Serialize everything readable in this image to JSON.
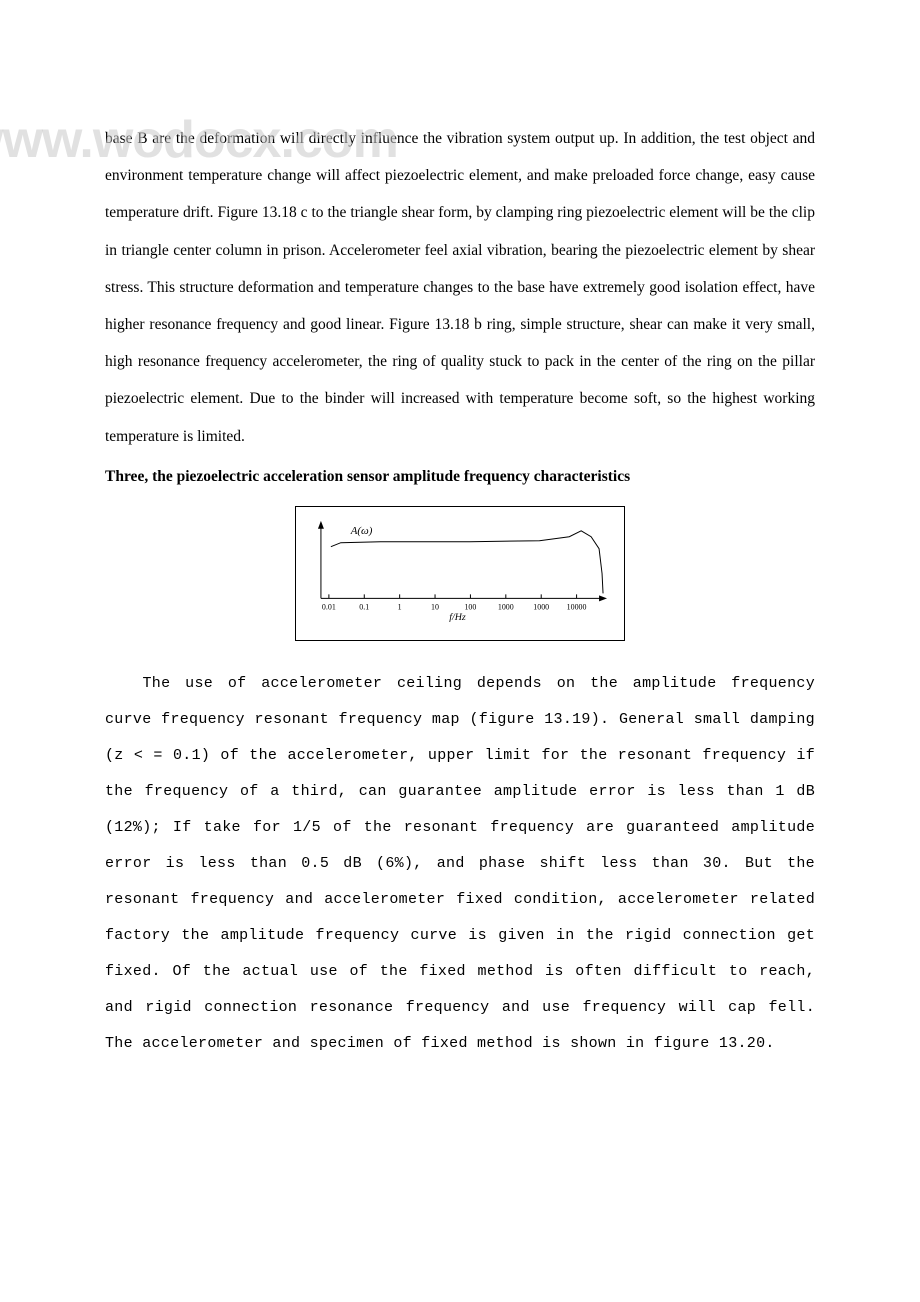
{
  "paragraph1": "base B are the deformation will directly influence the vibration system output up. In addition, the test object and environment temperature change will affect piezoelectric element, and make preloaded force change, easy cause temperature drift. Figure 13.18 c to the triangle shear form, by clamping ring piezoelectric element will be the clip in triangle center column in prison. Accelerometer feel axial vibration, bearing the piezoelectric element by shear stress. This structure deformation and temperature changes to the base have extremely good isolation effect, have higher resonance frequency and good linear. Figure 13.18 b ring, simple structure, shear can make it very small, high resonance frequency accelerometer, the ring of quality stuck to pack in the center of the ring on the pillar piezoelectric element. Due to the binder will increased with temperature become soft, so the highest working temperature is limited.",
  "heading": "Three, the piezoelectric acceleration sensor amplitude frequency characteristics",
  "paragraph2": "The use of accelerometer ceiling depends on the amplitude frequency curve frequency resonant frequency map (figure 13.19). General small damping (z < = 0.1) of the accelerometer, upper limit for the resonant frequency if the frequency of a third, can guarantee amplitude error is less than 1 dB (12%); If take for 1/5 of the resonant frequency are guaranteed amplitude error is less than 0.5 dB (6%), and phase shift less than 30. But the resonant frequency and accelerometer fixed condition, accelerometer related factory the amplitude frequency curve is given in the rigid connection get fixed. Of the actual use of the fixed method is often difficult to reach, and rigid connection resonance frequency and use frequency will cap fell. The accelerometer and specimen of fixed method is shown in figure 13.20.",
  "watermark": "www.wodocx.com",
  "chart": {
    "type": "line",
    "y_label": "A(ω)",
    "x_label": "f/Hz",
    "x_ticks": [
      "0.01",
      "0.1",
      "1",
      "10",
      "100",
      "1000",
      "1000",
      "10000"
    ],
    "curve_points": [
      {
        "x": 10,
        "y": 28
      },
      {
        "x": 20,
        "y": 24
      },
      {
        "x": 60,
        "y": 23
      },
      {
        "x": 150,
        "y": 23
      },
      {
        "x": 220,
        "y": 22
      },
      {
        "x": 250,
        "y": 18
      },
      {
        "x": 262,
        "y": 12
      },
      {
        "x": 272,
        "y": 18
      },
      {
        "x": 280,
        "y": 30
      },
      {
        "x": 283,
        "y": 55
      },
      {
        "x": 284,
        "y": 75
      }
    ],
    "axis_color": "#000000",
    "curve_color": "#000000",
    "tick_fontsize": 8,
    "label_fontsize": 11,
    "background_color": "#ffffff",
    "x_axis_y": 80,
    "y_axis_x": 10,
    "axis_width": 285,
    "axis_height": 80
  }
}
